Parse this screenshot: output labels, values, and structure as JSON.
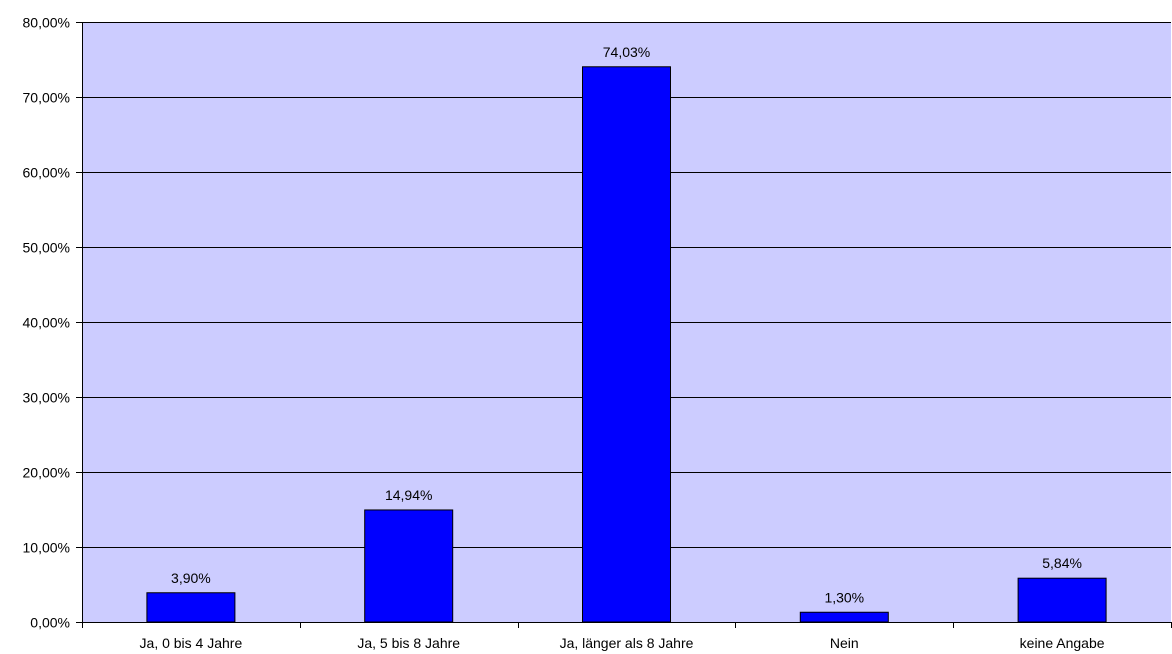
{
  "chart_data": {
    "type": "bar",
    "title": "",
    "xlabel": "",
    "ylabel": "",
    "categories": [
      "Ja, 0 bis 4 Jahre",
      "Ja, 5 bis 8 Jahre",
      "Ja, länger als 8 Jahre",
      "Nein",
      "keine Angabe"
    ],
    "values": [
      3.9,
      14.94,
      74.03,
      1.3,
      5.84
    ],
    "value_labels": [
      "3,90%",
      "14,94%",
      "74,03%",
      "1,30%",
      "5,84%"
    ],
    "ylim": [
      0,
      80
    ],
    "yticks": [
      0,
      10,
      20,
      30,
      40,
      50,
      60,
      70,
      80
    ],
    "ytick_labels": [
      "0,00%",
      "10,00%",
      "20,00%",
      "30,00%",
      "40,00%",
      "50,00%",
      "60,00%",
      "70,00%",
      "80,00%"
    ],
    "grid": true,
    "legend": "none",
    "colors": {
      "bar": "#0000ff",
      "bar_border": "#000000",
      "plot_background": "#ccccff",
      "gridline": "#000000"
    }
  }
}
